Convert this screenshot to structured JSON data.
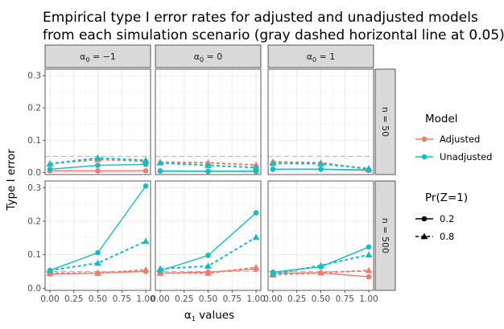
{
  "chart_data": {
    "type": "line",
    "title_lines": [
      "Empirical type I error rates for adjusted and unadjusted models",
      "from each simulation scenario (gray dashed horizontal line at 0.05)"
    ],
    "xlabel": {
      "symbol": "α",
      "sub": "1",
      "rest": " values"
    },
    "ylabel": "Type I error",
    "x_ticks": [
      0.0,
      0.25,
      0.5,
      0.75,
      1.0
    ],
    "x_tick_labels": [
      "0.00",
      "0.25",
      "0.50",
      "0.75",
      "1.00"
    ],
    "y_ticks": [
      0.0,
      0.1,
      0.2,
      0.3
    ],
    "y_tick_labels": [
      "0.0",
      "0.1",
      "0.2",
      "0.3"
    ],
    "xlim": [
      -0.05,
      1.05
    ],
    "ylim": [
      -0.0065,
      0.32
    ],
    "reference_line": 0.05,
    "grid": true,
    "col_facets": [
      {
        "symbol": "α",
        "sub": "0",
        "rest": " = −1"
      },
      {
        "symbol": "α",
        "sub": "0",
        "rest": " = 0"
      },
      {
        "symbol": "α",
        "sub": "0",
        "rest": " = 1"
      }
    ],
    "row_facets": [
      "n = 50",
      "n = 500"
    ],
    "model_legend": {
      "title": "Model",
      "entries": [
        {
          "key": "Adjusted",
          "label": "Adjusted",
          "color": "#f07c6c"
        },
        {
          "key": "Unadjusted",
          "label": "Unadjusted",
          "color": "#16bcc1"
        }
      ]
    },
    "prz_legend": {
      "title": "Pr(Z=1)",
      "entries": [
        {
          "key": "0.2",
          "label": "0.2",
          "shape": "circle",
          "line": "solid"
        },
        {
          "key": "0.8",
          "label": "0.8",
          "shape": "triangle",
          "line": "dashed"
        }
      ]
    },
    "x": [
      0.0,
      0.5,
      1.0
    ],
    "panels": [
      {
        "row": 0,
        "col": 0,
        "series": [
          {
            "model": "Adjusted",
            "prz": "0.2",
            "values": [
              0.005,
              0.005,
              0.005
            ]
          },
          {
            "model": "Adjusted",
            "prz": "0.8",
            "values": [
              0.027,
              0.04,
              0.035
            ]
          },
          {
            "model": "Unadjusted",
            "prz": "0.2",
            "values": [
              0.01,
              0.022,
              0.025
            ]
          },
          {
            "model": "Unadjusted",
            "prz": "0.8",
            "values": [
              0.027,
              0.045,
              0.038
            ]
          }
        ]
      },
      {
        "row": 0,
        "col": 1,
        "series": [
          {
            "model": "Adjusted",
            "prz": "0.2",
            "values": [
              0.004,
              0.003,
              0.003
            ]
          },
          {
            "model": "Adjusted",
            "prz": "0.8",
            "values": [
              0.032,
              0.03,
              0.023
            ]
          },
          {
            "model": "Unadjusted",
            "prz": "0.2",
            "values": [
              0.005,
              0.004,
              0.004
            ]
          },
          {
            "model": "Unadjusted",
            "prz": "0.8",
            "values": [
              0.03,
              0.022,
              0.015
            ]
          }
        ]
      },
      {
        "row": 0,
        "col": 2,
        "series": [
          {
            "model": "Adjusted",
            "prz": "0.2",
            "values": [
              0.01,
              0.01,
              0.006
            ]
          },
          {
            "model": "Adjusted",
            "prz": "0.8",
            "values": [
              0.033,
              0.03,
              0.01
            ]
          },
          {
            "model": "Unadjusted",
            "prz": "0.2",
            "values": [
              0.01,
              0.01,
              0.008
            ]
          },
          {
            "model": "Unadjusted",
            "prz": "0.8",
            "values": [
              0.028,
              0.027,
              0.012
            ]
          }
        ]
      },
      {
        "row": 1,
        "col": 0,
        "series": [
          {
            "model": "Adjusted",
            "prz": "0.2",
            "values": [
              0.042,
              0.045,
              0.05
            ]
          },
          {
            "model": "Adjusted",
            "prz": "0.8",
            "values": [
              0.045,
              0.045,
              0.055
            ]
          },
          {
            "model": "Unadjusted",
            "prz": "0.2",
            "values": [
              0.053,
              0.106,
              0.305
            ]
          },
          {
            "model": "Unadjusted",
            "prz": "0.8",
            "values": [
              0.053,
              0.075,
              0.14
            ]
          }
        ]
      },
      {
        "row": 1,
        "col": 1,
        "series": [
          {
            "model": "Adjusted",
            "prz": "0.2",
            "values": [
              0.045,
              0.048,
              0.057
            ]
          },
          {
            "model": "Adjusted",
            "prz": "0.8",
            "values": [
              0.045,
              0.045,
              0.062
            ]
          },
          {
            "model": "Unadjusted",
            "prz": "0.2",
            "values": [
              0.052,
              0.098,
              0.225
            ]
          },
          {
            "model": "Unadjusted",
            "prz": "0.8",
            "values": [
              0.058,
              0.066,
              0.152
            ]
          }
        ]
      },
      {
        "row": 1,
        "col": 2,
        "series": [
          {
            "model": "Adjusted",
            "prz": "0.2",
            "values": [
              0.045,
              0.046,
              0.034
            ]
          },
          {
            "model": "Adjusted",
            "prz": "0.8",
            "values": [
              0.04,
              0.046,
              0.053
            ]
          },
          {
            "model": "Unadjusted",
            "prz": "0.2",
            "values": [
              0.048,
              0.064,
              0.123
            ]
          },
          {
            "model": "Unadjusted",
            "prz": "0.8",
            "values": [
              0.042,
              0.068,
              0.1
            ]
          }
        ]
      }
    ]
  }
}
